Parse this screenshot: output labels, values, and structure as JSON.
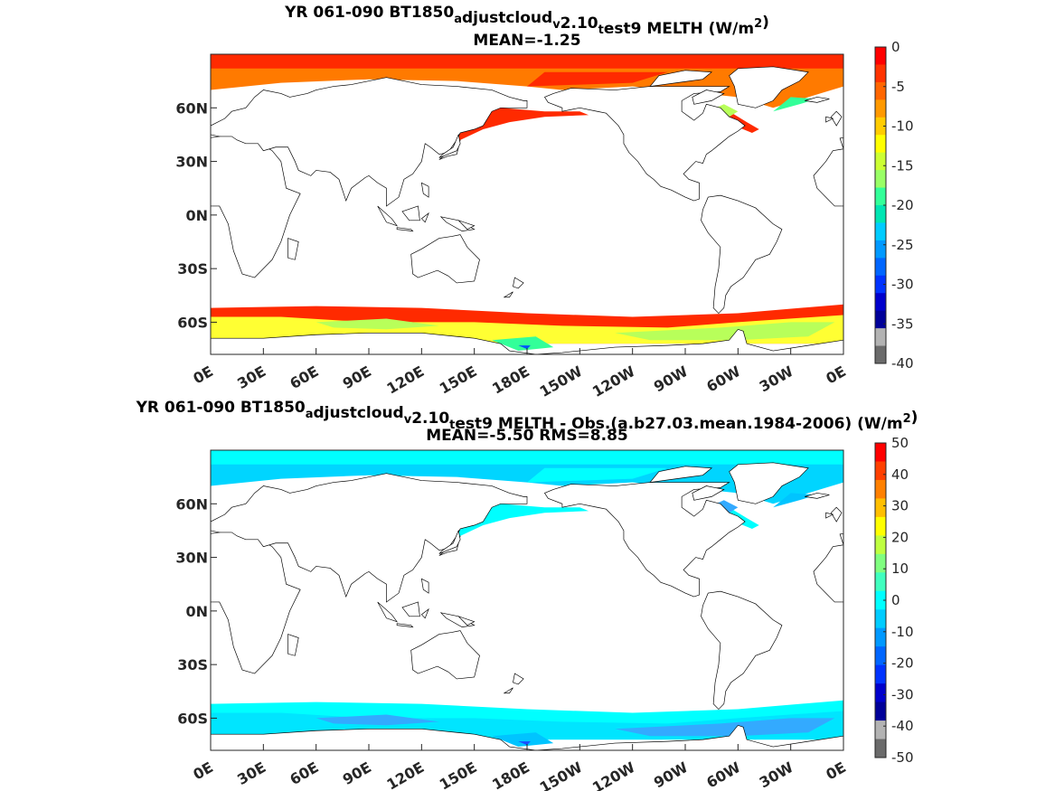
{
  "panels": [
    {
      "title_parts": [
        {
          "t": "YR 061-090 BT1850",
          "s": ""
        },
        {
          "t": "a",
          "s": "sub"
        },
        {
          "t": "djustcloud",
          "s": ""
        },
        {
          "t": "v",
          "s": "sub"
        },
        {
          "t": "2.10",
          "s": ""
        },
        {
          "t": "t",
          "s": "sub"
        },
        {
          "t": "est9  MELTH (W/m",
          "s": ""
        },
        {
          "t": "2",
          "s": "sup"
        },
        {
          "t": ")",
          "s": ""
        }
      ],
      "subtitle": "MEAN=-1.25",
      "colorbar": {
        "ticks": [
          "0",
          "-5",
          "-10",
          "-15",
          "-20",
          "-25",
          "-30",
          "-35",
          "-40"
        ],
        "colors": [
          "#ff0000",
          "#ff3300",
          "#ff6600",
          "#ff9900",
          "#ffcc00",
          "#ffff00",
          "#ccff33",
          "#99ff66",
          "#33ff99",
          "#00e6b3",
          "#00ccff",
          "#0099ff",
          "#0066ff",
          "#0033ff",
          "#0000cc",
          "#000099",
          "#b3b3b3",
          "#6b6b6b"
        ]
      },
      "palette": {
        "polar": "#ff2a00",
        "arctic_edge": "#ff7a00",
        "ice": "#ffff33",
        "ice2": "#b8ff5a",
        "ice3": "#33ff99",
        "deep": "#0055ff"
      }
    },
    {
      "title_parts": [
        {
          "t": "YR 061-090 BT1850",
          "s": ""
        },
        {
          "t": "a",
          "s": "sub"
        },
        {
          "t": "djustcloud",
          "s": ""
        },
        {
          "t": "v",
          "s": "sub"
        },
        {
          "t": "2.10",
          "s": ""
        },
        {
          "t": "t",
          "s": "sub"
        },
        {
          "t": "est9 MELTH - Obs.(a.b27.03.mean.1984-2006) (W/m",
          "s": ""
        },
        {
          "t": "2",
          "s": "sup"
        },
        {
          "t": ")",
          "s": ""
        }
      ],
      "subtitle": "MEAN=-5.50 RMS=8.85",
      "colorbar": {
        "ticks": [
          "50",
          "40",
          "30",
          "20",
          "10",
          "0",
          "-10",
          "-20",
          "-30",
          "-40",
          "-50"
        ],
        "colors": [
          "#ff0000",
          "#ff4000",
          "#ff8000",
          "#ffbf00",
          "#ffff00",
          "#bfff40",
          "#80ff80",
          "#40ffbf",
          "#00ffff",
          "#00ccff",
          "#0099ff",
          "#0066ff",
          "#0033ff",
          "#0000cc",
          "#000099",
          "#b3b3b3",
          "#6b6b6b"
        ]
      },
      "palette": {
        "polar": "#00ffff",
        "arctic_edge": "#00d5ff",
        "ice": "#00e5ff",
        "ice2": "#33aaff",
        "ice3": "#00c4ff",
        "deep": "#1a4dff"
      }
    }
  ],
  "axes": {
    "lat_ticks": [
      "60N",
      "30N",
      "0N",
      "30S",
      "60S"
    ],
    "lat_values": [
      60,
      30,
      0,
      -30,
      -60
    ],
    "lon_ticks": [
      "0E",
      "30E",
      "60E",
      "90E",
      "120E",
      "150E",
      "180E",
      "150W",
      "120W",
      "90W",
      "60W",
      "30W",
      "0E"
    ],
    "lon_values": [
      0,
      30,
      60,
      90,
      120,
      150,
      180,
      210,
      240,
      270,
      300,
      330,
      360
    ],
    "lat_range": [
      -78,
      90
    ],
    "lon_range": [
      0,
      360
    ]
  }
}
